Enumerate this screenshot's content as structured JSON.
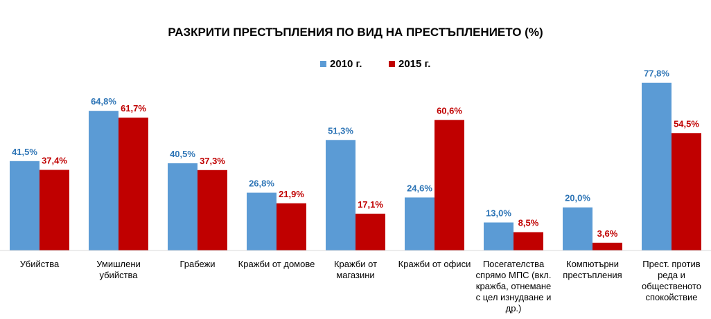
{
  "chart_data": {
    "type": "bar",
    "title": "РАЗКРИТИ ПРЕСТЪПЛЕНИЯ ПО ВИД НА ПРЕСТЪПЛЕНИЕТО (%)",
    "categories": [
      "Убийства",
      "Умишлени убийства",
      "Грабежи",
      "Кражби от домове",
      "Кражби от магазини",
      "Кражби от офиси",
      "Посегателства спрямо МПС (вкл. кражба, отнемане с цел изнудване и др.)",
      "Компютърни престъпления",
      "Прест. против реда и общественото спокойствие"
    ],
    "series": [
      {
        "name": "2010 г.",
        "color": "#5B9BD5",
        "label_color": "#2E75B6",
        "values": [
          41.5,
          64.8,
          40.5,
          26.8,
          51.3,
          24.6,
          13.0,
          20.0,
          77.8
        ],
        "labels": [
          "41,5%",
          "64,8%",
          "40,5%",
          "26,8%",
          "51,3%",
          "24,6%",
          "13,0%",
          "20,0%",
          "77,8%"
        ]
      },
      {
        "name": "2015 г.",
        "color": "#C00000",
        "label_color": "#C00000",
        "values": [
          37.4,
          61.7,
          37.3,
          21.9,
          17.1,
          60.6,
          8.5,
          3.6,
          54.5
        ],
        "labels": [
          "37,4%",
          "61,7%",
          "37,3%",
          "21,9%",
          "17,1%",
          "60,6%",
          "8,5%",
          "3,6%",
          "54,5%"
        ]
      }
    ],
    "ylim": [
      0,
      100
    ],
    "grid": false,
    "legend_position": "top-center",
    "xlabel": "",
    "ylabel": ""
  }
}
